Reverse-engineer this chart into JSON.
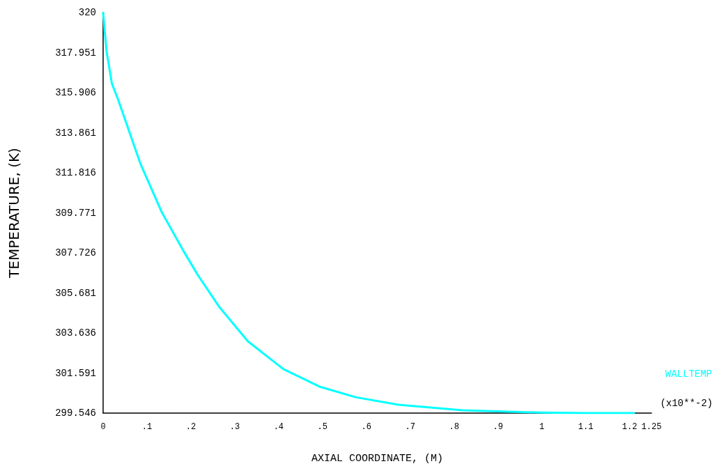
{
  "chart_data": {
    "type": "line",
    "xlabel": "AXIAL COORDINATE, (M)",
    "ylabel": "TEMPERATURE, (K)",
    "series": [
      {
        "name": "WALLTEMP",
        "color": "#00ffff",
        "x": [
          0,
          0.003,
          0.008,
          0.02,
          0.035,
          0.052,
          0.085,
          0.134,
          0.183,
          0.216,
          0.264,
          0.33,
          0.411,
          0.493,
          0.575,
          0.673,
          0.82,
          1.0,
          1.1,
          1.21
        ],
        "values": [
          320,
          319.2,
          318,
          316.37,
          315.5,
          314.41,
          312.28,
          309.79,
          307.83,
          306.59,
          304.99,
          303.21,
          301.79,
          300.9,
          300.36,
          299.97,
          299.69,
          299.57,
          299.55,
          299.55
        ]
      }
    ],
    "xlim": [
      0,
      1.25
    ],
    "xticks": [
      0,
      {
        "value": 0.1,
        "label": ".1"
      },
      {
        "value": 0.2,
        "label": ".2"
      },
      {
        "value": 0.3,
        "label": ".3"
      },
      {
        "value": 0.4,
        "label": ".4"
      },
      {
        "value": 0.5,
        "label": ".5"
      },
      {
        "value": 0.6,
        "label": ".6"
      },
      {
        "value": 0.7,
        "label": ".7"
      },
      {
        "value": 0.8,
        "label": ".8"
      },
      {
        "value": 0.9,
        "label": ".9"
      },
      1,
      1.1,
      1.2,
      1.25
    ],
    "ylim": [
      299.546,
      320
    ],
    "yticks": [
      299.546,
      301.591,
      303.636,
      305.681,
      307.726,
      309.771,
      311.816,
      313.861,
      315.906,
      317.951,
      {
        "value": 319.996,
        "label": "320"
      }
    ],
    "annotations": [
      "(x10**-2)"
    ],
    "legend": "right",
    "grid": false,
    "marker": "none",
    "line_style": "solid"
  }
}
